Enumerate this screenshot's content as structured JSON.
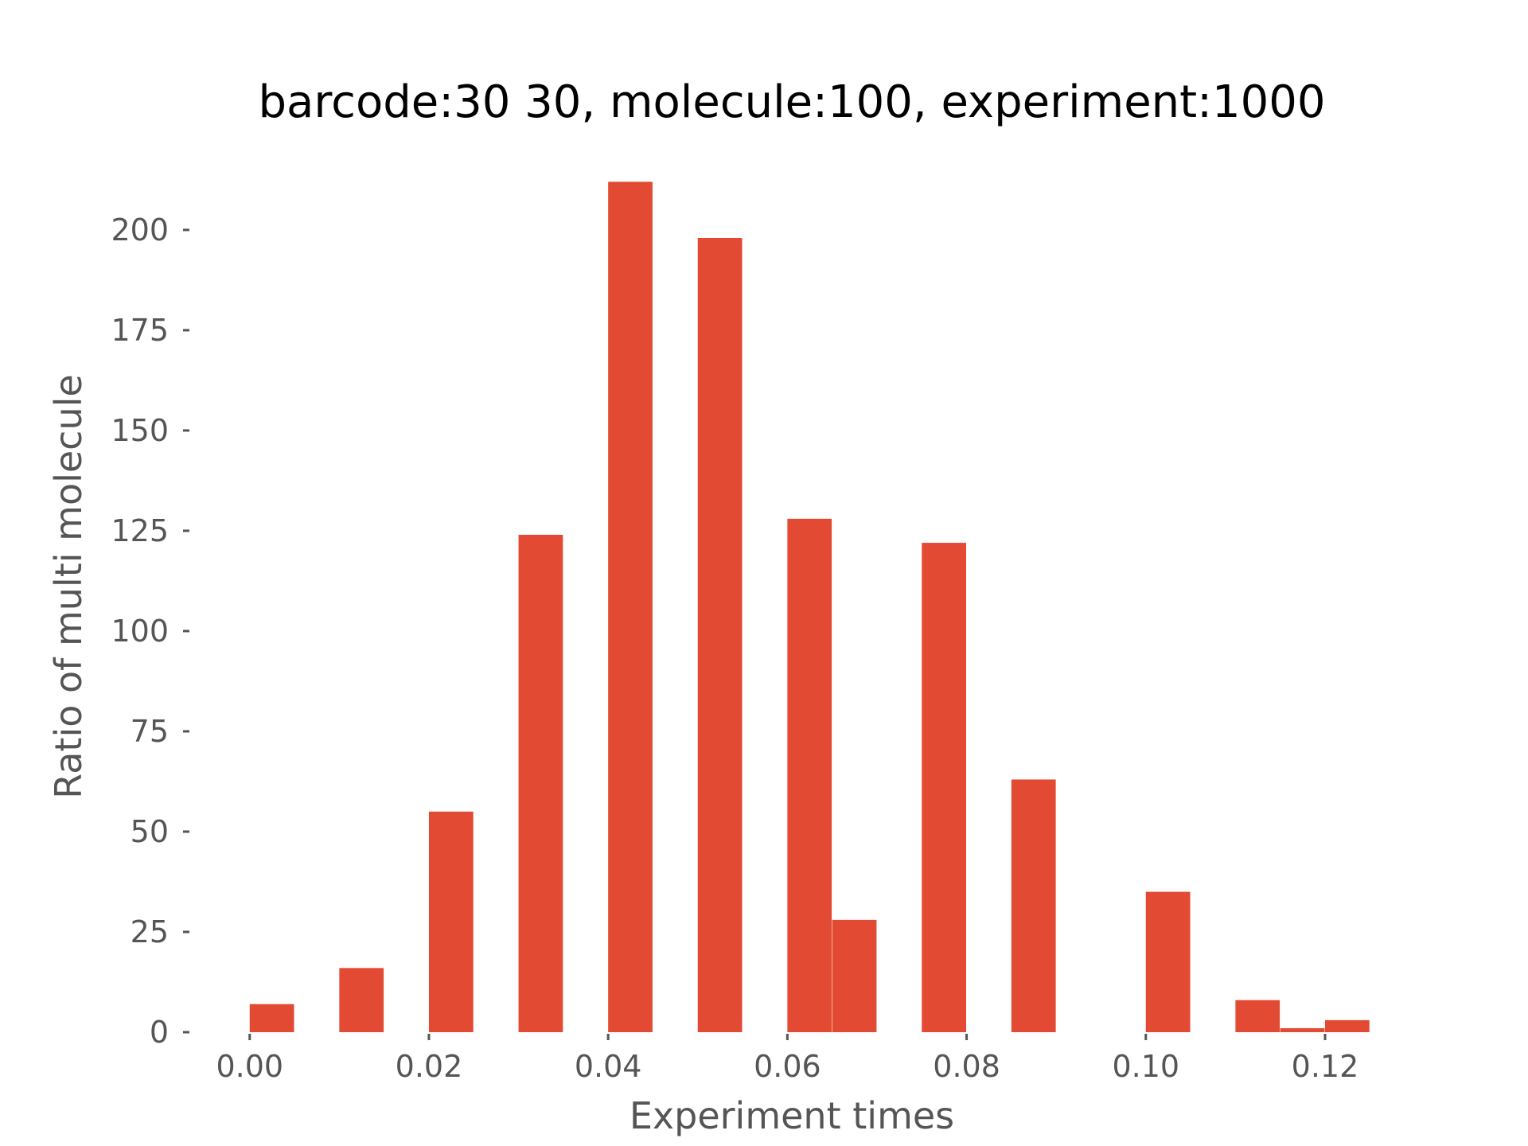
{
  "chart_data": {
    "type": "bar",
    "title": "barcode:30 30, molecule:100, experiment:1000",
    "xlabel": "Experiment times",
    "ylabel": "Ratio of multi molecule",
    "xlim": [
      -0.00655,
      0.12755
    ],
    "ylim": [
      0,
      222.6
    ],
    "grid": false,
    "bar_color": "#E24A33",
    "bin_width": 0.00495,
    "x_ticks": [
      0.0,
      0.02,
      0.04,
      0.06,
      0.08,
      0.1,
      0.12
    ],
    "x_tick_labels": [
      "0.00",
      "0.02",
      "0.04",
      "0.06",
      "0.08",
      "0.10",
      "0.12"
    ],
    "y_ticks": [
      0,
      25,
      50,
      75,
      100,
      125,
      150,
      175,
      200
    ],
    "y_tick_labels": [
      "0",
      "25",
      "50",
      "75",
      "100",
      "125",
      "150",
      "175",
      "200"
    ],
    "bins": [
      {
        "x": 0.0,
        "value": 7
      },
      {
        "x": 0.01,
        "value": 16
      },
      {
        "x": 0.02,
        "value": 55
      },
      {
        "x": 0.03,
        "value": 124
      },
      {
        "x": 0.04,
        "value": 212
      },
      {
        "x": 0.05,
        "value": 198
      },
      {
        "x": 0.06,
        "value": 128
      },
      {
        "x": 0.065,
        "value": 28
      },
      {
        "x": 0.075,
        "value": 122
      },
      {
        "x": 0.085,
        "value": 63
      },
      {
        "x": 0.1,
        "value": 35
      },
      {
        "x": 0.11,
        "value": 8
      },
      {
        "x": 0.115,
        "value": 1
      },
      {
        "x": 0.12,
        "value": 3
      }
    ]
  }
}
